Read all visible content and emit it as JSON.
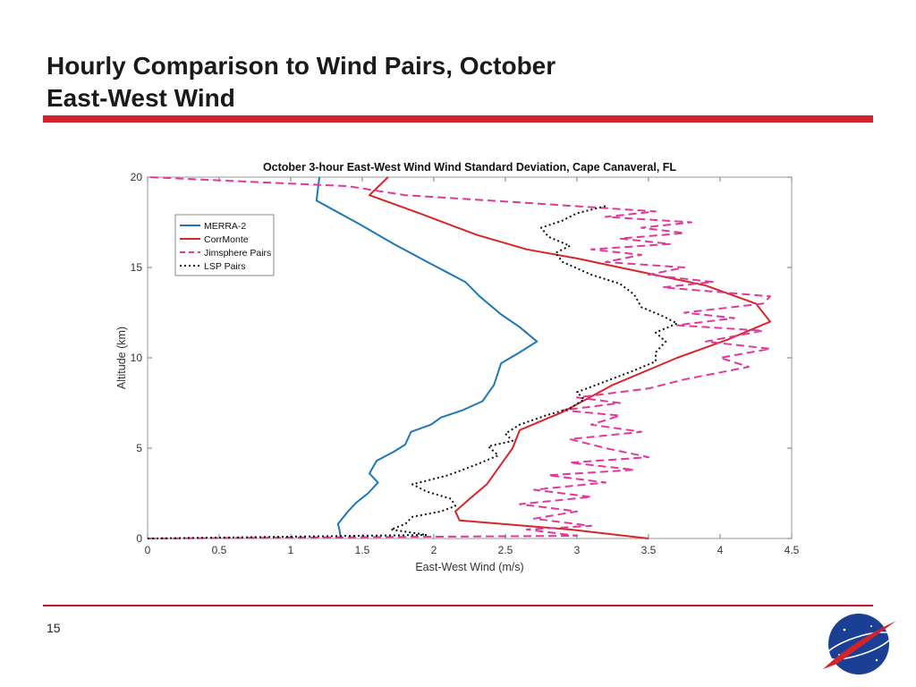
{
  "slide": {
    "title_line1": "Hourly Comparison to Wind Pairs, October",
    "title_line2": "East-West Wind",
    "page_number": "15",
    "logo_text": "NASA"
  },
  "colors": {
    "accent_red": "#d2232a",
    "merra": "#1f77b4",
    "corrmonte": "#d62728",
    "jimsphere": "#e0389c",
    "lsp": "#111111"
  },
  "chart_data": {
    "type": "line",
    "title": "October 3-hour East-West Wind Wind Standard Deviation, Cape Canaveral, FL",
    "xlabel": "East-West Wind (m/s)",
    "ylabel": "Altitude (km)",
    "xlim": [
      0,
      4.5
    ],
    "ylim": [
      0,
      20
    ],
    "xticks": [
      "0",
      "0.5",
      "1",
      "1.5",
      "2",
      "2.5",
      "3",
      "3.5",
      "4",
      "4.5"
    ],
    "yticks": [
      "0",
      "5",
      "10",
      "15",
      "20"
    ],
    "legend_position": "top-left",
    "grid": false,
    "series": [
      {
        "name": "MERRA-2",
        "style": "solid",
        "points": [
          [
            1.35,
            0
          ],
          [
            1.34,
            0.5
          ],
          [
            1.33,
            0.8
          ],
          [
            1.36,
            1.1
          ],
          [
            1.4,
            1.5
          ],
          [
            1.46,
            2.0
          ],
          [
            1.54,
            2.5
          ],
          [
            1.61,
            3.1
          ],
          [
            1.55,
            3.6
          ],
          [
            1.6,
            4.3
          ],
          [
            1.72,
            4.8
          ],
          [
            1.8,
            5.2
          ],
          [
            1.84,
            5.9
          ],
          [
            1.98,
            6.3
          ],
          [
            2.05,
            6.7
          ],
          [
            2.2,
            7.1
          ],
          [
            2.34,
            7.6
          ],
          [
            2.42,
            8.5
          ],
          [
            2.47,
            9.7
          ],
          [
            2.6,
            10.3
          ],
          [
            2.72,
            10.9
          ],
          [
            2.6,
            11.7
          ],
          [
            2.47,
            12.4
          ],
          [
            2.32,
            13.4
          ],
          [
            2.22,
            14.2
          ],
          [
            1.98,
            15.2
          ],
          [
            1.72,
            16.3
          ],
          [
            1.48,
            17.4
          ],
          [
            1.18,
            18.7
          ],
          [
            1.2,
            20.0
          ]
        ]
      },
      {
        "name": "CorrMonte",
        "style": "solid",
        "points": [
          [
            3.5,
            0
          ],
          [
            2.95,
            0.5
          ],
          [
            2.18,
            1.0
          ],
          [
            2.15,
            1.5
          ],
          [
            2.25,
            2.2
          ],
          [
            2.37,
            3.0
          ],
          [
            2.55,
            5.0
          ],
          [
            2.6,
            6.0
          ],
          [
            2.9,
            7.0
          ],
          [
            3.25,
            8.5
          ],
          [
            3.7,
            10.0
          ],
          [
            4.05,
            11.0
          ],
          [
            4.35,
            12.0
          ],
          [
            4.25,
            13.0
          ],
          [
            3.9,
            14.0
          ],
          [
            3.6,
            14.5
          ],
          [
            3.0,
            15.5
          ],
          [
            2.65,
            16.0
          ],
          [
            2.3,
            16.8
          ],
          [
            1.9,
            18.0
          ],
          [
            1.55,
            19.0
          ],
          [
            1.68,
            20.0
          ]
        ]
      },
      {
        "name": "Jimsphere Pairs",
        "style": "dashed",
        "points": [
          [
            0.0,
            0
          ],
          [
            3.0,
            0.15
          ],
          [
            2.65,
            0.5
          ],
          [
            3.1,
            0.7
          ],
          [
            2.7,
            1.1
          ],
          [
            3.0,
            1.5
          ],
          [
            2.6,
            1.9
          ],
          [
            3.1,
            2.3
          ],
          [
            2.7,
            2.7
          ],
          [
            3.2,
            3.1
          ],
          [
            2.8,
            3.5
          ],
          [
            3.4,
            3.8
          ],
          [
            2.95,
            4.2
          ],
          [
            3.5,
            4.5
          ],
          [
            3.2,
            5.0
          ],
          [
            2.95,
            5.5
          ],
          [
            3.45,
            5.9
          ],
          [
            3.1,
            6.3
          ],
          [
            3.3,
            6.8
          ],
          [
            2.9,
            7.1
          ],
          [
            3.3,
            7.5
          ],
          [
            3.0,
            7.8
          ],
          [
            3.5,
            8.3
          ],
          [
            3.75,
            8.8
          ],
          [
            4.2,
            9.5
          ],
          [
            4.0,
            10.0
          ],
          [
            4.35,
            10.5
          ],
          [
            3.9,
            10.9
          ],
          [
            4.3,
            11.5
          ],
          [
            3.7,
            11.8
          ],
          [
            4.1,
            12.2
          ],
          [
            3.75,
            12.5
          ],
          [
            4.3,
            13.0
          ],
          [
            4.35,
            13.4
          ],
          [
            3.6,
            13.9
          ],
          [
            3.95,
            14.2
          ],
          [
            3.5,
            14.6
          ],
          [
            3.75,
            15.0
          ],
          [
            3.2,
            15.3
          ],
          [
            3.45,
            15.7
          ],
          [
            3.1,
            16.0
          ],
          [
            3.65,
            16.3
          ],
          [
            3.3,
            16.6
          ],
          [
            3.75,
            16.9
          ],
          [
            3.45,
            17.2
          ],
          [
            3.8,
            17.5
          ],
          [
            3.2,
            17.8
          ],
          [
            3.55,
            18.1
          ],
          [
            2.6,
            18.6
          ],
          [
            1.8,
            19.0
          ],
          [
            1.4,
            19.5
          ],
          [
            0.0,
            20.0
          ]
        ]
      },
      {
        "name": "LSP Pairs",
        "style": "dotted",
        "points": [
          [
            0.0,
            0
          ],
          [
            1.95,
            0.2
          ],
          [
            1.7,
            0.5
          ],
          [
            1.8,
            0.8
          ],
          [
            1.85,
            1.2
          ],
          [
            2.05,
            1.5
          ],
          [
            2.15,
            1.8
          ],
          [
            2.12,
            2.2
          ],
          [
            1.95,
            2.6
          ],
          [
            1.85,
            3.0
          ],
          [
            2.1,
            3.5
          ],
          [
            2.3,
            4.1
          ],
          [
            2.45,
            4.6
          ],
          [
            2.38,
            5.1
          ],
          [
            2.55,
            5.4
          ],
          [
            2.5,
            5.8
          ],
          [
            2.6,
            6.3
          ],
          [
            2.78,
            6.8
          ],
          [
            2.95,
            7.2
          ],
          [
            3.05,
            7.7
          ],
          [
            3.0,
            8.1
          ],
          [
            3.2,
            8.7
          ],
          [
            3.4,
            9.3
          ],
          [
            3.55,
            9.8
          ],
          [
            3.55,
            10.3
          ],
          [
            3.62,
            10.9
          ],
          [
            3.55,
            11.4
          ],
          [
            3.7,
            11.9
          ],
          [
            3.6,
            12.3
          ],
          [
            3.45,
            12.8
          ],
          [
            3.4,
            13.5
          ],
          [
            3.3,
            14.1
          ],
          [
            3.1,
            14.6
          ],
          [
            2.9,
            15.3
          ],
          [
            2.85,
            15.8
          ],
          [
            2.95,
            16.2
          ],
          [
            2.8,
            16.7
          ],
          [
            2.75,
            17.2
          ],
          [
            2.9,
            17.6
          ],
          [
            3.0,
            18.0
          ],
          [
            3.1,
            18.2
          ],
          [
            3.2,
            18.4
          ]
        ]
      }
    ]
  }
}
